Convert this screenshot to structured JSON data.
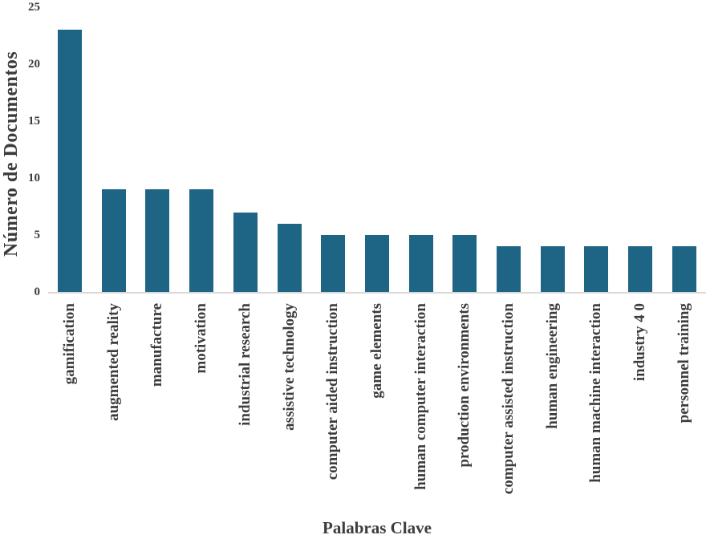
{
  "chart_data": {
    "type": "bar",
    "title": "",
    "xlabel": "Palabras Clave",
    "ylabel": "Número de Documentos",
    "categories": [
      "gamification",
      "augmented reality",
      "manufacture",
      "motivation",
      "industrial research",
      "assistive technology",
      "computer aided instruction",
      "game elements",
      "human computer interaction",
      "production environments",
      "computer assisted instruction",
      "human engineering",
      "human machine interaction",
      "industry 4 0",
      "personnel training"
    ],
    "values": [
      23,
      9,
      9,
      9,
      7,
      6,
      5,
      5,
      5,
      5,
      4,
      4,
      4,
      4,
      4
    ],
    "ylim": [
      0,
      25
    ],
    "yticks": [
      0,
      5,
      10,
      15,
      20,
      25
    ],
    "grid": false,
    "legend_position": "none",
    "bar_color": "#1e6484",
    "axis_line_color": "#d9d9d9",
    "text_color": "#3c3c3c"
  }
}
